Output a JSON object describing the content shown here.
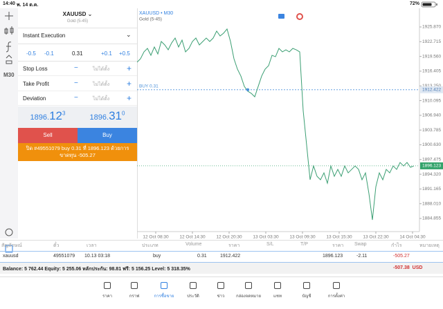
{
  "status_bar": {
    "time": "14:40",
    "date": "พ. 14 ต.ค.",
    "battery": "72%"
  },
  "toolbar": {
    "timeframe": "M30"
  },
  "order_panel": {
    "symbol": "XAUUSD",
    "description": "Gold (5-45)",
    "execution": "Instant Execution",
    "volume_steps": [
      "-0.5",
      "-0.1",
      "0.31",
      "+0.1",
      "+0.5"
    ],
    "fields": [
      {
        "label": "Stop Loss",
        "value": "ไม่ได้ตั้ง"
      },
      {
        "label": "Take Profit",
        "value": "ไม่ได้ตั้ง"
      },
      {
        "label": "Deviation",
        "value": "ไม่ได้ตั้ง"
      }
    ],
    "bid": [
      "1896.",
      "12",
      "3"
    ],
    "ask": [
      "1896.",
      "31",
      "0"
    ],
    "sell": "Sell",
    "buy": "Buy",
    "message": "ปิด #49551079 buy 0.31 ที่ 1896.123 ด้วยการขาดทุน -505.27"
  },
  "chart_data": {
    "type": "line",
    "title": "XAUUSD • M30",
    "subtitle": "Gold (5-45)",
    "color": "#3a9e72",
    "values": [
      1918.32,
      1919.06,
      1920.54,
      1921.28,
      1919.8,
      1921.58,
      1920.09,
      1922.76,
      1922.02,
      1920.98,
      1922.46,
      1923.5,
      1921.58,
      1923.06,
      1920.54,
      1921.28,
      1922.76,
      1923.5,
      1922.02,
      1922.76,
      1923.5,
      1922.76,
      1923.5,
      1924.98,
      1923.94,
      1924.54,
      1925.43,
      1922.76,
      1919.06,
      1916.84,
      1915.35,
      1913.13,
      1912.1,
      1911.65,
      1910.91,
      1913.13,
      1915.35,
      1916.84,
      1917.58,
      1919.8,
      1919.5,
      1921.28,
      1920.54,
      1920.98,
      1920.54,
      1921.28,
      1920.98,
      1920.54,
      1907.95,
      1900.54,
      1893.14,
      1896.1,
      1893.88,
      1893.14,
      1894.62,
      1892.4,
      1896.1,
      1893.88,
      1895.36,
      1893.88,
      1896.1,
      1894.62,
      1895.36,
      1896.1,
      1895.36,
      1893.14,
      1894.62,
      1890.18,
      1884.55,
      1891.66,
      1894.62,
      1893.14,
      1895.36,
      1894.62,
      1896.1,
      1895.36,
      1896.84,
      1896.1,
      1896.84,
      1895.81,
      1896.12
    ],
    "ylim": [
      1882.04,
      1929.87
    ],
    "yticks": [
      {
        "value": 1925.87,
        "label": "1925.870"
      },
      {
        "value": 1922.715,
        "label": "1922.715"
      },
      {
        "value": 1919.56,
        "label": "1919.560"
      },
      {
        "value": 1916.405,
        "label": "1916.405"
      },
      {
        "value": 1913.25,
        "label": "1913.250"
      },
      {
        "value": 1910.095,
        "label": "1910.095"
      },
      {
        "value": 1906.94,
        "label": "1906.940"
      },
      {
        "value": 1903.785,
        "label": "1903.785"
      },
      {
        "value": 1900.63,
        "label": "1900.630"
      },
      {
        "value": 1897.475,
        "label": "1897.475"
      },
      {
        "value": 1894.32,
        "label": "1894.320"
      },
      {
        "value": 1891.165,
        "label": "1891.165"
      },
      {
        "value": 1888.01,
        "label": "1888.010"
      },
      {
        "value": 1884.855,
        "label": "1884.855"
      }
    ],
    "xlim": [
      0,
      81.6
    ],
    "xticks": [
      {
        "value": 5.4,
        "label": "12 Oct 08:30"
      },
      {
        "value": 16,
        "label": "12 Oct 14:30"
      },
      {
        "value": 26.6,
        "label": "12 Oct 20:30"
      },
      {
        "value": 37.2,
        "label": "13 Oct 03:30"
      },
      {
        "value": 47.8,
        "label": "13 Oct 09:30"
      },
      {
        "value": 58.4,
        "label": "13 Oct 15:30"
      },
      {
        "value": 69,
        "label": "13 Oct 22:30"
      },
      {
        "value": 79.6,
        "label": "14 Oct 04:30"
      }
    ],
    "grid": false,
    "order_line": {
      "label": "BUY 0.31",
      "value": 1912.422,
      "color": "#4a90d9"
    },
    "price_line": {
      "value": 1896.123,
      "color": "#33a36b"
    }
  },
  "positions_table": {
    "columns": [
      "สัญลักษณ์",
      "ตั๋ว",
      "เวลา",
      "ประเภท",
      "Volume",
      "ราคา",
      "S/L",
      "T/P",
      "ราคา",
      "Swap",
      "กำไร",
      "หมายเหตุ"
    ],
    "rows": [
      {
        "symbol": "xauusd",
        "ticket": "49551079",
        "time": "10.13 03:18",
        "type": "buy",
        "volume": "0.31",
        "open_price": "1912.422",
        "price": "1896.123",
        "swap": "-2.11",
        "profit": "-505.27"
      }
    ]
  },
  "account_summary": {
    "text": "Balance: 5 762.44 Equity: 5 255.06 หลักประกัน: 98.81 ฟรี: 5 156.25 Level: 5 318.35%",
    "total": "-507.38",
    "currency": "USD"
  },
  "tab_bar": {
    "tabs": [
      "ราคา",
      "กราฟ",
      "การซื้อขาย",
      "ประวัติ",
      "ข่าว",
      "กล่องจดหมาย",
      "แชท",
      "บัญชี",
      "การตั้งค่า"
    ],
    "active": 2
  }
}
